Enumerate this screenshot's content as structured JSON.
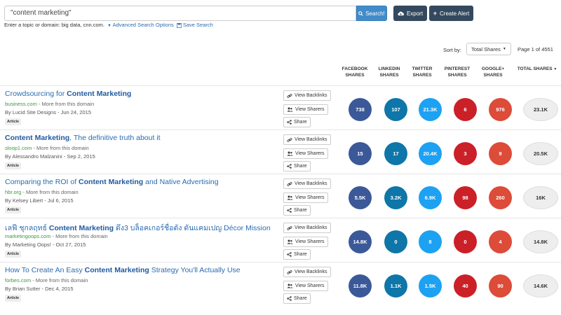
{
  "search": {
    "query": "\"content marketing\"",
    "button_label": "Search!",
    "helper_text": "Enter a topic or domain: big data, cnn.com.",
    "advanced_link": "Advanced Search Options",
    "save_link": "Save Search"
  },
  "toolbar": {
    "export_label": "Export",
    "create_alert_label": "Create Alert"
  },
  "sort": {
    "label": "Sort by:",
    "selected": "Total Shares",
    "page_info": "Page 1 of 4551"
  },
  "columns": {
    "facebook": "FACEBOOK SHARES",
    "linkedin": "LINKEDIN SHARES",
    "twitter": "TWITTER SHARES",
    "pinterest": "PINTEREST SHARES",
    "google": "GOOGLE+ SHARES",
    "total": "TOTAL SHARES"
  },
  "colors": {
    "facebook": "#3b5998",
    "linkedin": "#0e76a8",
    "twitter": "#1da1f2",
    "pinterest": "#cb2027",
    "google": "#dd4b39"
  },
  "action_labels": {
    "backlinks": "View Backlinks",
    "sharers": "View Sharers",
    "share": "Share"
  },
  "results": [
    {
      "title_pre": "Crowdsourcing for ",
      "title_bold": "Content Marketing",
      "title_post": "",
      "domain": "business.com",
      "more": " - More from this domain",
      "author": "By Lucid Site Designs - Jun 24, 2015",
      "badge": "Article",
      "facebook": "738",
      "linkedin": "107",
      "twitter": "21.3K",
      "pinterest": "6",
      "google": "976",
      "total": "23.1K"
    },
    {
      "title_pre": "",
      "title_bold": "Content Marketing",
      "title_post": ", The definitive truth about it",
      "domain": "sloop1.com",
      "more": " - More from this domain",
      "author": "By Alessandro Malzanini - Sep 2, 2015",
      "badge": "Article",
      "facebook": "15",
      "linkedin": "17",
      "twitter": "20.4K",
      "pinterest": "3",
      "google": "9",
      "total": "20.5K"
    },
    {
      "title_pre": "Comparing the ROI of ",
      "title_bold": "Content Marketing",
      "title_post": " and Native Advertising",
      "domain": "hbr.org",
      "more": " - More from this domain",
      "author": "By Kelsey Libert - Jul 6, 2015",
      "badge": "Article",
      "facebook": "5.5K",
      "linkedin": "3.2K",
      "twitter": "6.9K",
      "pinterest": "98",
      "google": "260",
      "total": "16K"
    },
    {
      "title_pre": "เลฟี ชุกลฤทธ์ ",
      "title_bold": "Content Marketing",
      "title_post": " ดึง3 บล็อคเกอร์ชื่อดัง ดันแคมเปญ Décor Mission",
      "domain": "marketingoops.com",
      "more": " - More from this domain",
      "author": "By Marketing Oops! - Oct 27, 2015",
      "badge": "Article",
      "facebook": "14.8K",
      "linkedin": "0",
      "twitter": "8",
      "pinterest": "0",
      "google": "4",
      "total": "14.8K"
    },
    {
      "title_pre": "How To Create An Easy ",
      "title_bold": "Content Marketing",
      "title_post": " Strategy You'll Actually Use",
      "domain": "forbes.com",
      "more": " - More from this domain",
      "author": "By Brian Sutter - Dec 4, 2015",
      "badge": "Article",
      "facebook": "11.8K",
      "linkedin": "1.1K",
      "twitter": "1.5K",
      "pinterest": "40",
      "google": "90",
      "total": "14.6K"
    }
  ]
}
